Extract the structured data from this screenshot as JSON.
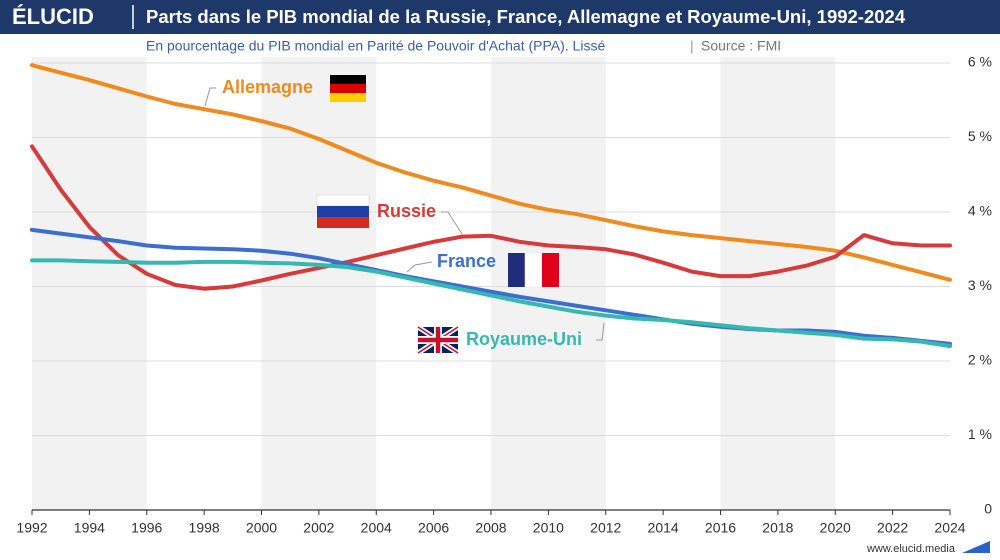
{
  "brand": "ÉLUCID",
  "footer": "www.elucid.media",
  "chart_data": {
    "type": "line",
    "title": "Parts dans le PIB mondial de la Russie, France, Allemagne et Royaume-Uni, 1992-2024",
    "subtitle": "En pourcentage du PIB mondial en Parité de Pouvoir d'Achat (PPA). Lissé",
    "source": "Source : FMI",
    "x": [
      1992,
      1993,
      1994,
      1995,
      1996,
      1997,
      1998,
      1999,
      2000,
      2001,
      2002,
      2003,
      2004,
      2005,
      2006,
      2007,
      2008,
      2009,
      2010,
      2011,
      2012,
      2013,
      2014,
      2015,
      2016,
      2017,
      2018,
      2019,
      2020,
      2021,
      2022,
      2023,
      2024
    ],
    "xlim": [
      1992,
      2024
    ],
    "xticks": [
      1992,
      1994,
      1996,
      1998,
      2000,
      2002,
      2004,
      2006,
      2008,
      2010,
      2012,
      2014,
      2016,
      2018,
      2020,
      2022,
      2024
    ],
    "ylim": [
      0,
      6
    ],
    "yticks": [
      0,
      {
        "value": 1,
        "label": "1 %"
      },
      {
        "value": 2,
        "label": "2 %"
      },
      {
        "value": 3,
        "label": "3 %"
      },
      {
        "value": 4,
        "label": "4 %"
      },
      {
        "value": 5,
        "label": "5 %"
      },
      {
        "value": 6,
        "label": "6 %"
      }
    ],
    "grid": true,
    "series": [
      {
        "name": "Allemagne",
        "color": "#f08a1e",
        "values": [
          5.97,
          5.87,
          5.77,
          5.66,
          5.55,
          5.45,
          5.38,
          5.31,
          5.22,
          5.12,
          4.98,
          4.82,
          4.66,
          4.53,
          4.42,
          4.33,
          4.22,
          4.11,
          4.03,
          3.97,
          3.89,
          3.81,
          3.74,
          3.69,
          3.65,
          3.61,
          3.57,
          3.53,
          3.48,
          3.39,
          3.29,
          3.19,
          3.09
        ]
      },
      {
        "name": "Russie",
        "color": "#d63a3a",
        "values": [
          4.88,
          4.3,
          3.8,
          3.42,
          3.17,
          3.02,
          2.97,
          3.0,
          3.08,
          3.17,
          3.25,
          3.33,
          3.42,
          3.51,
          3.6,
          3.67,
          3.68,
          3.6,
          3.55,
          3.53,
          3.5,
          3.43,
          3.32,
          3.2,
          3.14,
          3.14,
          3.2,
          3.28,
          3.4,
          3.69,
          3.58,
          3.55,
          3.55
        ]
      },
      {
        "name": "France",
        "color": "#3a6fd0",
        "values": [
          3.76,
          3.71,
          3.66,
          3.61,
          3.55,
          3.52,
          3.51,
          3.5,
          3.48,
          3.44,
          3.38,
          3.3,
          3.22,
          3.14,
          3.07,
          3.0,
          2.93,
          2.86,
          2.8,
          2.74,
          2.68,
          2.62,
          2.56,
          2.5,
          2.46,
          2.43,
          2.41,
          2.41,
          2.39,
          2.34,
          2.31,
          2.27,
          2.23
        ]
      },
      {
        "name": "Royaume-Uni",
        "color": "#35b8b0",
        "values": [
          3.35,
          3.35,
          3.34,
          3.33,
          3.32,
          3.32,
          3.33,
          3.33,
          3.32,
          3.31,
          3.29,
          3.26,
          3.2,
          3.12,
          3.04,
          2.96,
          2.88,
          2.8,
          2.73,
          2.66,
          2.61,
          2.57,
          2.55,
          2.52,
          2.48,
          2.44,
          2.41,
          2.38,
          2.35,
          2.3,
          2.29,
          2.26,
          2.2
        ]
      }
    ]
  }
}
